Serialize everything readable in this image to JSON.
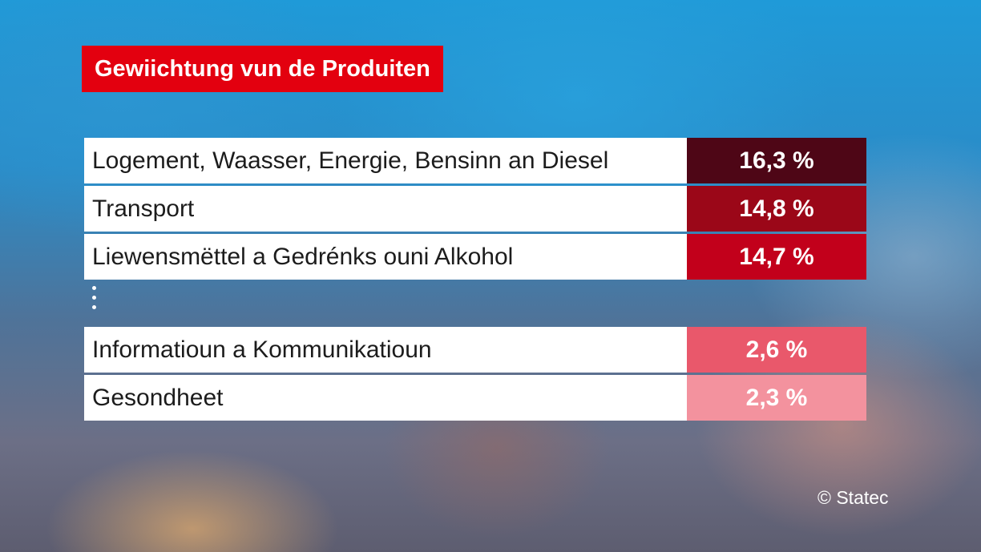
{
  "title": "Gewiichtung vun de Produiten",
  "credit": "© Statec",
  "colors": {
    "title_background": "#e3000f",
    "row_1": "#4e0616",
    "row_2": "#9b0718",
    "row_3": "#c2001b",
    "row_4": "#e9586b",
    "row_5": "#f3929e"
  },
  "chart_data": {
    "type": "table",
    "title": "Gewiichtung vun de Produiten",
    "columns": [
      "",
      ""
    ],
    "rows": [
      {
        "category": "Logement, Waasser, Energie, Bensinn an Diesel",
        "value": 16.3,
        "label": "16,3 %"
      },
      {
        "category": "Transport",
        "value": 14.8,
        "label": "14,8 %"
      },
      {
        "category": "Liewensmëttel a Gedrénks ouni Alkohol",
        "value": 14.7,
        "label": "14,7 %"
      },
      {
        "category": "Informatioun a Kommunikatioun",
        "value": 2.6,
        "label": "2,6 %"
      },
      {
        "category": "Gesondheet",
        "value": 2.3,
        "label": "2,3 %"
      }
    ],
    "omitted_rows_marker": "vertical-ellipsis"
  }
}
